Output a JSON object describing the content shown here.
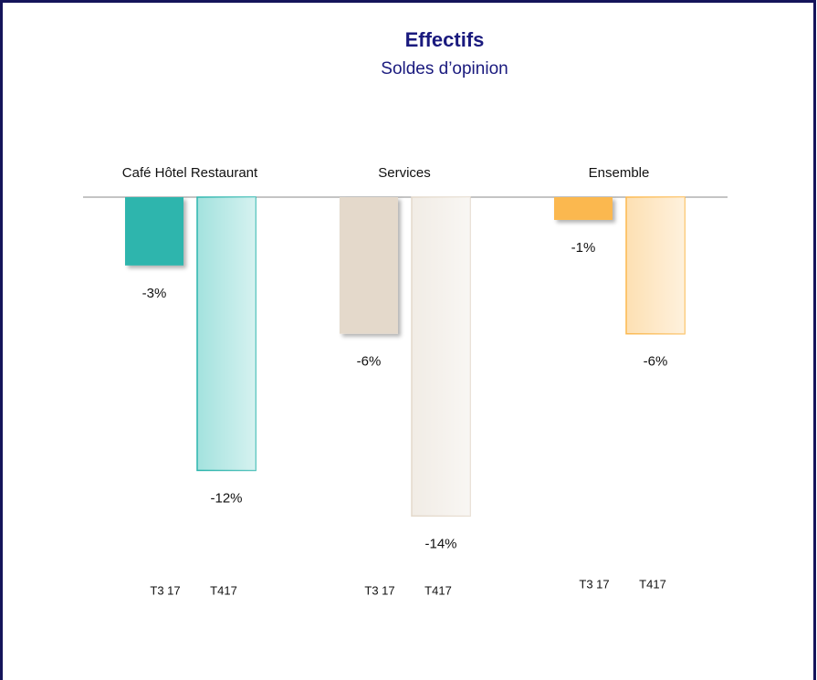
{
  "chart_data": {
    "type": "bar",
    "title": "Effectifs",
    "subtitle": "Soldes d’opinion",
    "categories": [
      "Café Hôtel Restaurant",
      "Services",
      "Ensemble"
    ],
    "series": [
      {
        "name": "T3 17",
        "values": [
          -3,
          -6,
          -1
        ],
        "value_labels": [
          "-3%",
          "-6%",
          "-1%"
        ],
        "colors": [
          "#2db5ad",
          "#e4d9cb",
          "#fbb84f"
        ]
      },
      {
        "name": "T417",
        "values": [
          -12,
          -14,
          -6
        ],
        "value_labels": [
          "-12%",
          "-14%",
          "-6%"
        ],
        "colors": [
          "#a3e2de",
          "#f1ece5",
          "#fde0b3"
        ]
      }
    ]
  }
}
